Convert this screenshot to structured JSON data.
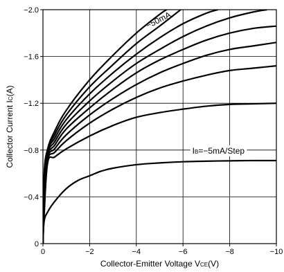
{
  "chart_data": {
    "type": "line",
    "xlabel": "Collector-Emitter Voltage VCE(V)",
    "xlabel_parts": {
      "prefix": "Collector-Emitter Voltage V",
      "sub": "CE",
      "suffix": "(V)"
    },
    "ylabel": "Collector Current IC(A)",
    "ylabel_parts": {
      "prefix": "Collector Current I",
      "sub": "C",
      "suffix": "(A)"
    },
    "xlim": [
      0,
      -10
    ],
    "ylim": [
      0,
      -2.0
    ],
    "x_ticks": [
      0,
      -2,
      -4,
      -6,
      -8,
      -10
    ],
    "y_ticks": [
      0,
      -0.4,
      -0.8,
      -1.2,
      -1.6,
      -2.0
    ],
    "x_tick_labels": [
      "0",
      "−2",
      "−4",
      "−6",
      "−8",
      "−10"
    ],
    "y_tick_labels": [
      "0",
      "−0.4",
      "−0.8",
      "−1.2",
      "−1.6",
      "−2.0"
    ],
    "grid": true,
    "line_color": "#000000",
    "annotations": [
      {
        "text": "−50mA",
        "x": -5.0,
        "y": -1.89,
        "rotate": -27
      },
      {
        "text_prefix": "I",
        "text_sub": "B",
        "text_suffix": "=−5mA/Step",
        "x": -6.4,
        "y": -0.77
      }
    ],
    "series": [
      {
        "values": [
          [
            0,
            0
          ],
          [
            -0.05,
            -0.19
          ],
          [
            -0.2,
            -0.27
          ],
          [
            -0.5,
            -0.36
          ],
          [
            -1,
            -0.47
          ],
          [
            -1.5,
            -0.54
          ],
          [
            -2,
            -0.58
          ],
          [
            -2.5,
            -0.62
          ],
          [
            -3,
            -0.645
          ],
          [
            -4,
            -0.675
          ],
          [
            -5,
            -0.69
          ],
          [
            -6,
            -0.7
          ],
          [
            -7,
            -0.705
          ],
          [
            -8,
            -0.708
          ],
          [
            -9,
            -0.71
          ],
          [
            -10,
            -0.71
          ]
        ]
      },
      {
        "values": [
          [
            0,
            0
          ],
          [
            -0.05,
            -0.24
          ],
          [
            -0.2,
            -0.69
          ],
          [
            -0.5,
            -0.74
          ],
          [
            -1,
            -0.81
          ],
          [
            -2,
            -0.92
          ],
          [
            -3,
            -1.01
          ],
          [
            -4,
            -1.08
          ],
          [
            -5,
            -1.12
          ],
          [
            -6,
            -1.15
          ],
          [
            -7,
            -1.175
          ],
          [
            -8,
            -1.19
          ],
          [
            -9,
            -1.195
          ],
          [
            -10,
            -1.2
          ]
        ]
      },
      {
        "values": [
          [
            0,
            0
          ],
          [
            -0.05,
            -0.29
          ],
          [
            -0.2,
            -0.71
          ],
          [
            -0.5,
            -0.78
          ],
          [
            -1,
            -0.88
          ],
          [
            -2,
            -1.03
          ],
          [
            -3,
            -1.15
          ],
          [
            -4,
            -1.25
          ],
          [
            -5,
            -1.33
          ],
          [
            -6,
            -1.39
          ],
          [
            -7,
            -1.44
          ],
          [
            -8,
            -1.48
          ],
          [
            -9,
            -1.5
          ],
          [
            -10,
            -1.52
          ]
        ]
      },
      {
        "values": [
          [
            0,
            0
          ],
          [
            -0.05,
            -0.34
          ],
          [
            -0.2,
            -0.73
          ],
          [
            -0.5,
            -0.81
          ],
          [
            -1,
            -0.93
          ],
          [
            -2,
            -1.1
          ],
          [
            -3,
            -1.24
          ],
          [
            -4,
            -1.36
          ],
          [
            -5,
            -1.46
          ],
          [
            -6,
            -1.54
          ],
          [
            -7,
            -1.61
          ],
          [
            -8,
            -1.66
          ],
          [
            -9,
            -1.69
          ],
          [
            -10,
            -1.72
          ]
        ]
      },
      {
        "values": [
          [
            0,
            0
          ],
          [
            -0.05,
            -0.39
          ],
          [
            -0.2,
            -0.75
          ],
          [
            -0.5,
            -0.84
          ],
          [
            -1,
            -0.98
          ],
          [
            -2,
            -1.16
          ],
          [
            -3,
            -1.32
          ],
          [
            -4,
            -1.46
          ],
          [
            -5,
            -1.57
          ],
          [
            -6,
            -1.66
          ],
          [
            -7,
            -1.74
          ],
          [
            -8,
            -1.8
          ],
          [
            -9,
            -1.84
          ],
          [
            -10,
            -1.86
          ]
        ]
      },
      {
        "values": [
          [
            0,
            0
          ],
          [
            -0.05,
            -0.44
          ],
          [
            -0.2,
            -0.77
          ],
          [
            -0.5,
            -0.87
          ],
          [
            -1,
            -1.02
          ],
          [
            -2,
            -1.22
          ],
          [
            -3,
            -1.39
          ],
          [
            -4,
            -1.54
          ],
          [
            -5,
            -1.66
          ],
          [
            -6,
            -1.77
          ],
          [
            -7,
            -1.86
          ],
          [
            -8,
            -1.93
          ],
          [
            -9,
            -1.98
          ],
          [
            -9.6,
            -2.0
          ]
        ]
      },
      {
        "values": [
          [
            0,
            0
          ],
          [
            -0.05,
            -0.49
          ],
          [
            -0.2,
            -0.79
          ],
          [
            -0.5,
            -0.9
          ],
          [
            -1,
            -1.06
          ],
          [
            -2,
            -1.28
          ],
          [
            -3,
            -1.46
          ],
          [
            -4,
            -1.62
          ],
          [
            -5,
            -1.76
          ],
          [
            -6,
            -1.88
          ],
          [
            -7,
            -1.97
          ],
          [
            -7.5,
            -2.0
          ]
        ]
      },
      {
        "values": [
          [
            0,
            0
          ],
          [
            -0.05,
            -0.54
          ],
          [
            -0.2,
            -0.8
          ],
          [
            -0.5,
            -0.93
          ],
          [
            -1,
            -1.1
          ],
          [
            -2,
            -1.34
          ],
          [
            -3,
            -1.53
          ],
          [
            -4,
            -1.71
          ],
          [
            -5,
            -1.86
          ],
          [
            -5.9,
            -2.0
          ]
        ]
      },
      {
        "values": [
          [
            0,
            0
          ],
          [
            -0.05,
            -0.59
          ],
          [
            -0.2,
            -0.81
          ],
          [
            -0.5,
            -0.96
          ],
          [
            -1,
            -1.14
          ],
          [
            -2,
            -1.4
          ],
          [
            -3,
            -1.61
          ],
          [
            -4,
            -1.8
          ],
          [
            -5,
            -1.96
          ],
          [
            -5.3,
            -2.0
          ]
        ]
      }
    ]
  }
}
